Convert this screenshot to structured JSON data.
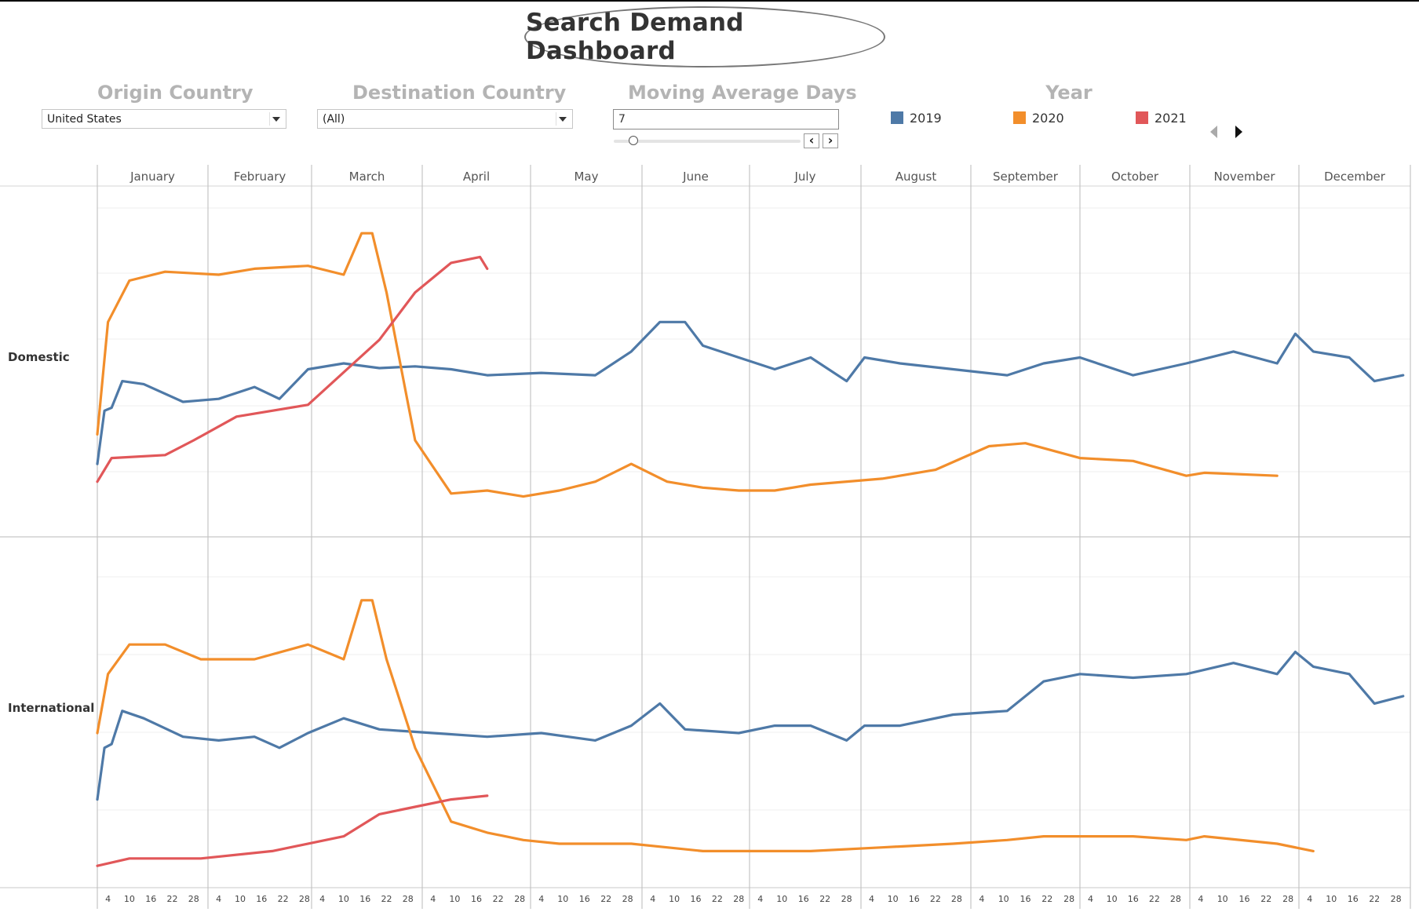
{
  "dashboard": {
    "title": "Search Demand Dashboard"
  },
  "filters": {
    "origin": {
      "label": "Origin Country",
      "value": "United States"
    },
    "destination": {
      "label": "Destination Country",
      "value": "(All)"
    },
    "moving_average": {
      "label": "Moving Average Days",
      "value": "7",
      "slider_level": 0.07
    },
    "year_legend": {
      "label": "Year",
      "items": [
        {
          "label": "2019",
          "color": "#4e79a7"
        },
        {
          "label": "2020",
          "color": "#f28e2b"
        },
        {
          "label": "2021",
          "color": "#e15759"
        }
      ]
    }
  },
  "chart_data": {
    "type": "line",
    "months": [
      "January",
      "February",
      "March",
      "April",
      "May",
      "June",
      "July",
      "August",
      "September",
      "October",
      "November",
      "December"
    ],
    "day_ticks": [
      "4",
      "10",
      "16",
      "22",
      "28"
    ],
    "panels": [
      "Domestic",
      "International"
    ],
    "grid": true,
    "colors": {
      "2019": "#4e79a7",
      "2020": "#f28e2b",
      "2021": "#e15759"
    },
    "series": {
      "Domestic": {
        "2019": [
          [
            1,
            11
          ],
          [
            3,
            20
          ],
          [
            5,
            20.5
          ],
          [
            8,
            25
          ],
          [
            14,
            24.5
          ],
          [
            25,
            21.5
          ],
          [
            35,
            22
          ],
          [
            45,
            24
          ],
          [
            52,
            22
          ],
          [
            60,
            27
          ],
          [
            70,
            28
          ],
          [
            80,
            27.2
          ],
          [
            90,
            27.5
          ],
          [
            100,
            27
          ],
          [
            110,
            26
          ],
          [
            125,
            26.4
          ],
          [
            140,
            26
          ],
          [
            150,
            30
          ],
          [
            158,
            35
          ],
          [
            165,
            35
          ],
          [
            170,
            31
          ],
          [
            180,
            29
          ],
          [
            190,
            27
          ],
          [
            200,
            29
          ],
          [
            210,
            25
          ],
          [
            215,
            29
          ],
          [
            225,
            28
          ],
          [
            240,
            27
          ],
          [
            255,
            26
          ],
          [
            265,
            28
          ],
          [
            275,
            29
          ],
          [
            290,
            26
          ],
          [
            305,
            28
          ],
          [
            318,
            30
          ],
          [
            330,
            28
          ],
          [
            335,
            33
          ],
          [
            340,
            30
          ],
          [
            350,
            29
          ],
          [
            357,
            25
          ],
          [
            365,
            26
          ]
        ],
        "2020": [
          [
            1,
            16
          ],
          [
            4,
            35
          ],
          [
            10,
            42
          ],
          [
            20,
            43.5
          ],
          [
            35,
            43
          ],
          [
            45,
            44
          ],
          [
            60,
            44.5
          ],
          [
            70,
            43
          ],
          [
            75,
            50
          ],
          [
            78,
            50
          ],
          [
            82,
            40
          ],
          [
            90,
            15
          ],
          [
            100,
            6
          ],
          [
            110,
            6.5
          ],
          [
            120,
            5.5
          ],
          [
            130,
            6.5
          ],
          [
            140,
            8
          ],
          [
            150,
            11
          ],
          [
            160,
            8
          ],
          [
            170,
            7
          ],
          [
            180,
            6.5
          ],
          [
            190,
            6.5
          ],
          [
            200,
            7.5
          ],
          [
            220,
            8.5
          ],
          [
            235,
            10
          ],
          [
            250,
            14
          ],
          [
            260,
            14.5
          ],
          [
            275,
            12
          ],
          [
            290,
            11.5
          ],
          [
            305,
            9
          ],
          [
            310,
            9.5
          ],
          [
            330,
            9
          ]
        ],
        "2021": [
          [
            1,
            8
          ],
          [
            5,
            12
          ],
          [
            20,
            12.5
          ],
          [
            28,
            15
          ],
          [
            40,
            19
          ],
          [
            60,
            21
          ],
          [
            80,
            32
          ],
          [
            90,
            40
          ],
          [
            100,
            45
          ],
          [
            108,
            46
          ],
          [
            110,
            44
          ]
        ]
      },
      "International": {
        "2019": [
          [
            1,
            11
          ],
          [
            3,
            18
          ],
          [
            5,
            18.5
          ],
          [
            8,
            23
          ],
          [
            14,
            22
          ],
          [
            25,
            19.5
          ],
          [
            35,
            19
          ],
          [
            45,
            19.5
          ],
          [
            52,
            18
          ],
          [
            60,
            20
          ],
          [
            70,
            22
          ],
          [
            80,
            20.5
          ],
          [
            95,
            20
          ],
          [
            110,
            19.5
          ],
          [
            125,
            20
          ],
          [
            140,
            19
          ],
          [
            150,
            21
          ],
          [
            158,
            24
          ],
          [
            165,
            20.5
          ],
          [
            180,
            20
          ],
          [
            190,
            21
          ],
          [
            200,
            21
          ],
          [
            210,
            19
          ],
          [
            215,
            21
          ],
          [
            225,
            21
          ],
          [
            240,
            22.5
          ],
          [
            255,
            23
          ],
          [
            265,
            27
          ],
          [
            275,
            28
          ],
          [
            290,
            27.5
          ],
          [
            305,
            28
          ],
          [
            318,
            29.5
          ],
          [
            330,
            28
          ],
          [
            335,
            31
          ],
          [
            340,
            29
          ],
          [
            350,
            28
          ],
          [
            357,
            24
          ],
          [
            365,
            25
          ]
        ],
        "2020": [
          [
            1,
            20
          ],
          [
            4,
            28
          ],
          [
            10,
            32
          ],
          [
            20,
            32
          ],
          [
            30,
            30
          ],
          [
            45,
            30
          ],
          [
            60,
            32
          ],
          [
            70,
            30
          ],
          [
            75,
            38
          ],
          [
            78,
            38
          ],
          [
            82,
            30
          ],
          [
            90,
            18
          ],
          [
            100,
            8
          ],
          [
            110,
            6.5
          ],
          [
            120,
            5.5
          ],
          [
            130,
            5
          ],
          [
            140,
            5
          ],
          [
            150,
            5
          ],
          [
            160,
            4.5
          ],
          [
            170,
            4
          ],
          [
            180,
            4
          ],
          [
            190,
            4
          ],
          [
            200,
            4
          ],
          [
            220,
            4.5
          ],
          [
            240,
            5
          ],
          [
            255,
            5.5
          ],
          [
            265,
            6
          ],
          [
            275,
            6
          ],
          [
            290,
            6
          ],
          [
            305,
            5.5
          ],
          [
            310,
            6
          ],
          [
            330,
            5
          ],
          [
            340,
            4
          ]
        ],
        "2021": [
          [
            1,
            2
          ],
          [
            10,
            3
          ],
          [
            30,
            3
          ],
          [
            50,
            4
          ],
          [
            70,
            6
          ],
          [
            80,
            9
          ],
          [
            90,
            10
          ],
          [
            100,
            11
          ],
          [
            110,
            11.5
          ]
        ]
      }
    }
  }
}
